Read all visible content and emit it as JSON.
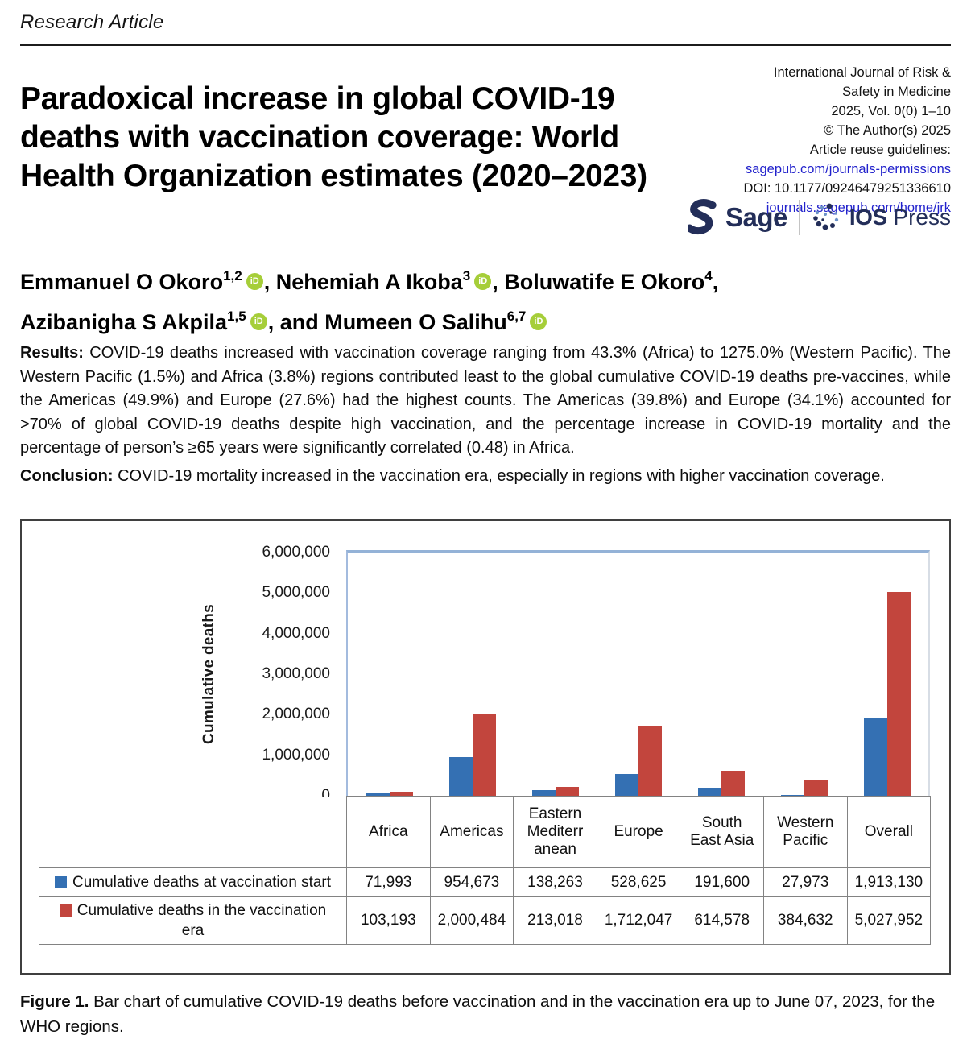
{
  "kicker": "Research Article",
  "title": "Paradoxical increase in global COVID-19\ndeaths with vaccination coverage: World\nHealth Organization estimates (2020–2023)",
  "journal": {
    "lines": [
      {
        "text": "International Journal of Risk &",
        "link": false
      },
      {
        "text": "Safety in Medicine",
        "link": false
      },
      {
        "text": "2025, Vol. 0(0) 1–10",
        "link": false
      },
      {
        "text": "© The Author(s) 2025",
        "link": false
      },
      {
        "text": "Article reuse guidelines:",
        "link": false
      },
      {
        "text": "sagepub.com/journals-permissions",
        "link": true
      },
      {
        "text": "DOI: 10.1177/09246479251336610",
        "link": false
      },
      {
        "text": "journals.sagepub.com/home/jrk",
        "link": true
      }
    ],
    "link_color": "#2222cc",
    "publisher_sage": "Sage",
    "publisher_ios_bold": "IOS",
    "publisher_ios_rest": " Press",
    "logo_color": "#232e59"
  },
  "authors": [
    {
      "name": "Emmanuel O Okoro",
      "sup": "1,2",
      "orcid": true,
      "sep": ", ",
      "break_after": false
    },
    {
      "name": "Nehemiah A Ikoba",
      "sup": "3",
      "orcid": true,
      "sep": ", ",
      "break_after": false
    },
    {
      "name": "Boluwatife E Okoro",
      "sup": "4",
      "orcid": false,
      "sep": ",",
      "break_after": true
    },
    {
      "name": "Azibanigha S Akpila",
      "sup": "1,5",
      "orcid": true,
      "sep": ", and ",
      "break_after": false
    },
    {
      "name": "Mumeen O Salihu",
      "sup": "6,7",
      "orcid": true,
      "sep": "",
      "break_after": false
    }
  ],
  "orcid_icon_text": "iD",
  "orcid_color": "#a6ce39",
  "abstract": {
    "results_label": "Results:",
    "results_text": " COVID-19 deaths increased with vaccination coverage ranging from 43.3% (Africa) to 1275.0% (Western Pacific). The Western Pacific (1.5%) and Africa (3.8%) regions contributed least to the global cumulative COVID-19 deaths pre-vaccines, while the Americas (49.9%) and Europe (27.6%) had the highest counts. The Americas (39.8%) and Europe (34.1%) accounted for >70% of global COVID-19 deaths despite high vaccination, and the percentage increase in COVID-19 mortality and the percentage of person’s ≥65 years were significantly correlated (0.48) in Africa.",
    "conclusion_label": "Conclusion:",
    "conclusion_text": " COVID-19 mortality increased in the vaccination era, especially in regions with higher vaccination coverage."
  },
  "chart_data": {
    "type": "bar",
    "title": "",
    "xlabel": "",
    "ylabel": "Cumulative deaths",
    "ylim": [
      0,
      6000000
    ],
    "grid": "top-border-only",
    "legend_position": "table-left-column",
    "yticks": [
      {
        "label": "6,000,000",
        "value": 6000000
      },
      {
        "label": "5,000,000",
        "value": 5000000
      },
      {
        "label": "4,000,000",
        "value": 4000000
      },
      {
        "label": "3,000,000",
        "value": 3000000
      },
      {
        "label": "2,000,000",
        "value": 2000000
      },
      {
        "label": "1,000,000",
        "value": 1000000
      },
      {
        "label": "0",
        "value": 0
      }
    ],
    "categories": [
      "Africa",
      "Americas",
      "Eastern\nMediterr\nanean",
      "Europe",
      "South\nEast Asia",
      "Western\nPacific",
      "Overall"
    ],
    "series": [
      {
        "name": "Cumulative deaths at vaccination start",
        "legend_display": "Cumulative deaths at vaccination start",
        "color": "#3470b3",
        "values": [
          71993,
          954673,
          138263,
          528625,
          191600,
          27973,
          1913130
        ],
        "values_formatted": [
          "71,993",
          "954,673",
          "138,263",
          "528,625",
          "191,600",
          "27,973",
          "1,913,130"
        ]
      },
      {
        "name": "Cumulative deaths in the vaccination era",
        "legend_display": "Cumulative deaths in the vaccination\nera",
        "color": "#c2453d",
        "values": [
          103193,
          2000484,
          213018,
          1712047,
          614578,
          384632,
          5027952
        ],
        "values_formatted": [
          "103,193",
          "2,000,484",
          "213,018",
          "1,712,047",
          "614,578",
          "384,632",
          "5,027,952"
        ]
      }
    ]
  },
  "caption": {
    "label": "Figure 1.",
    "text": "  Bar chart of cumulative COVID-19 deaths before vaccination and in the vaccination era up to June 07, 2023, for the WHO regions."
  }
}
